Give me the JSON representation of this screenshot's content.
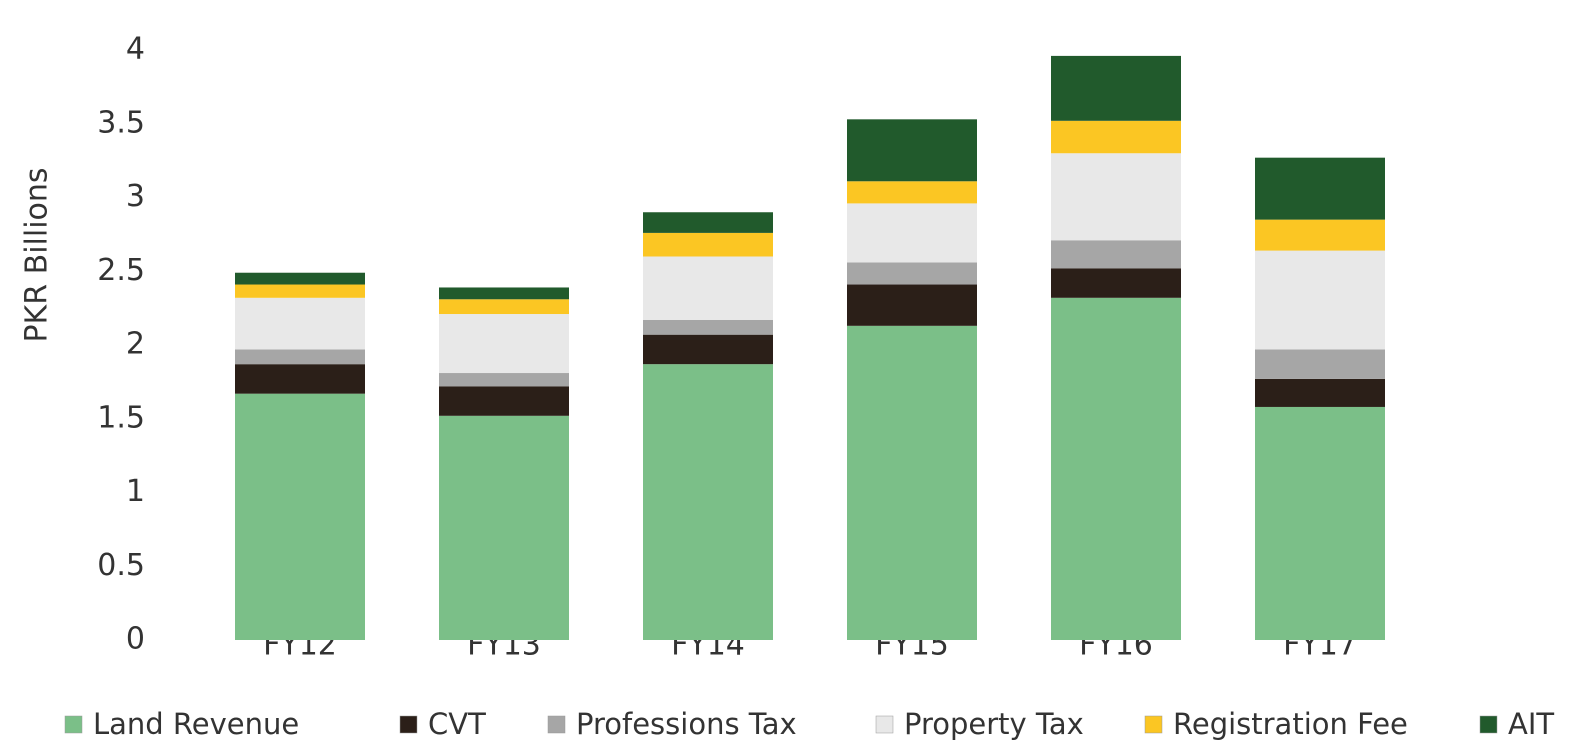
{
  "chart_data": {
    "type": "stacked_bar",
    "y_axis_label": "PKR Billions",
    "categories": [
      "FY12",
      "FY13",
      "FY14",
      "FY15",
      "FY16",
      "FY17"
    ],
    "series": [
      {
        "name": "Land Revenue",
        "color": "#7bbf88",
        "values": [
          1.67,
          1.52,
          1.87,
          2.13,
          2.32,
          1.58
        ]
      },
      {
        "name": "CVT",
        "color": "#2b1f18",
        "values": [
          0.2,
          0.2,
          0.2,
          0.28,
          0.2,
          0.19
        ]
      },
      {
        "name": "Professions Tax",
        "color": "#a6a6a6",
        "values": [
          0.1,
          0.09,
          0.1,
          0.15,
          0.19,
          0.2
        ]
      },
      {
        "name": "Property Tax",
        "color": "#e8e8e8",
        "values": [
          0.35,
          0.4,
          0.43,
          0.4,
          0.59,
          0.67
        ]
      },
      {
        "name": "Registration Fee",
        "color": "#fbc623",
        "values": [
          0.09,
          0.1,
          0.16,
          0.15,
          0.22,
          0.21
        ]
      },
      {
        "name": "AIT",
        "color": "#215a2c",
        "values": [
          0.08,
          0.08,
          0.14,
          0.42,
          0.44,
          0.42
        ]
      }
    ],
    "ylim": [
      0,
      4
    ],
    "yticks": [
      0,
      0.5,
      1,
      1.5,
      2,
      2.5,
      3,
      3.5,
      4
    ],
    "grid": false,
    "legend": "bottom"
  }
}
